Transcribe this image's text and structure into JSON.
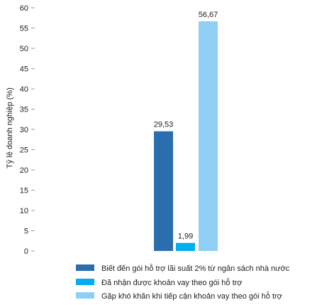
{
  "chart_data": {
    "type": "bar",
    "title": "",
    "xlabel": "",
    "ylabel": "Tỷ lệ doanh nghiệp (%)",
    "ylim": [
      0,
      60
    ],
    "yticks": [
      0,
      5,
      10,
      15,
      20,
      25,
      30,
      35,
      40,
      45,
      50,
      55,
      60
    ],
    "grid": false,
    "legend_position": "bottom",
    "series": [
      {
        "name": "Biết đến gói hỗ trợ lãi suất 2% từ ngân sách nhà nước",
        "value": 29.53,
        "label": "29,53",
        "color": "#2a6eaf"
      },
      {
        "name": "Đã nhận được khoản vay theo gói hỗ trợ",
        "value": 1.99,
        "label": "1,99",
        "color": "#00aeef"
      },
      {
        "name": "Gặp khó khăn khi tiếp cận khoản vay theo gói hỗ trợ",
        "value": 56.67,
        "label": "56,67",
        "color": "#8fd0f2"
      }
    ]
  }
}
